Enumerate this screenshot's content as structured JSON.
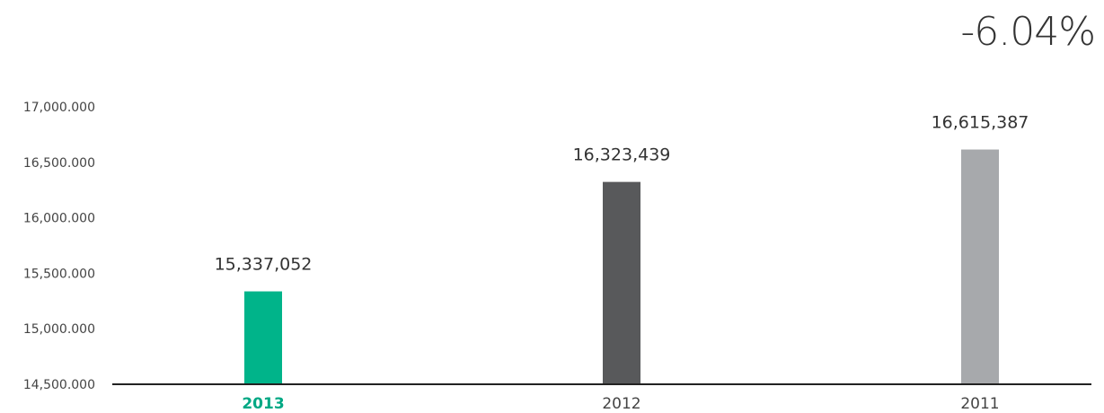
{
  "headline": {
    "change_text": "-6.04%"
  },
  "chart_data": {
    "type": "bar",
    "categories": [
      "2013",
      "2012",
      "2011"
    ],
    "values": [
      15337052,
      16323439,
      16615387
    ],
    "value_labels": [
      "15,337,052",
      "16,323,439",
      "16,615,387"
    ],
    "bar_colors": [
      "#00b48a",
      "#58595b",
      "#a7a9ac"
    ],
    "highlight_category": "2013",
    "highlight_color": "#00a884",
    "ylim": [
      14500000,
      17000000
    ],
    "yticks": [
      14500000,
      15000000,
      15500000,
      16000000,
      16500000,
      17000000
    ],
    "ytick_labels": [
      "14,500.000",
      "15,000.000",
      "15,500.000",
      "16,000.000",
      "16,500.000",
      "17,000.000"
    ],
    "grid": false,
    "title": "",
    "xlabel": "",
    "ylabel": ""
  }
}
